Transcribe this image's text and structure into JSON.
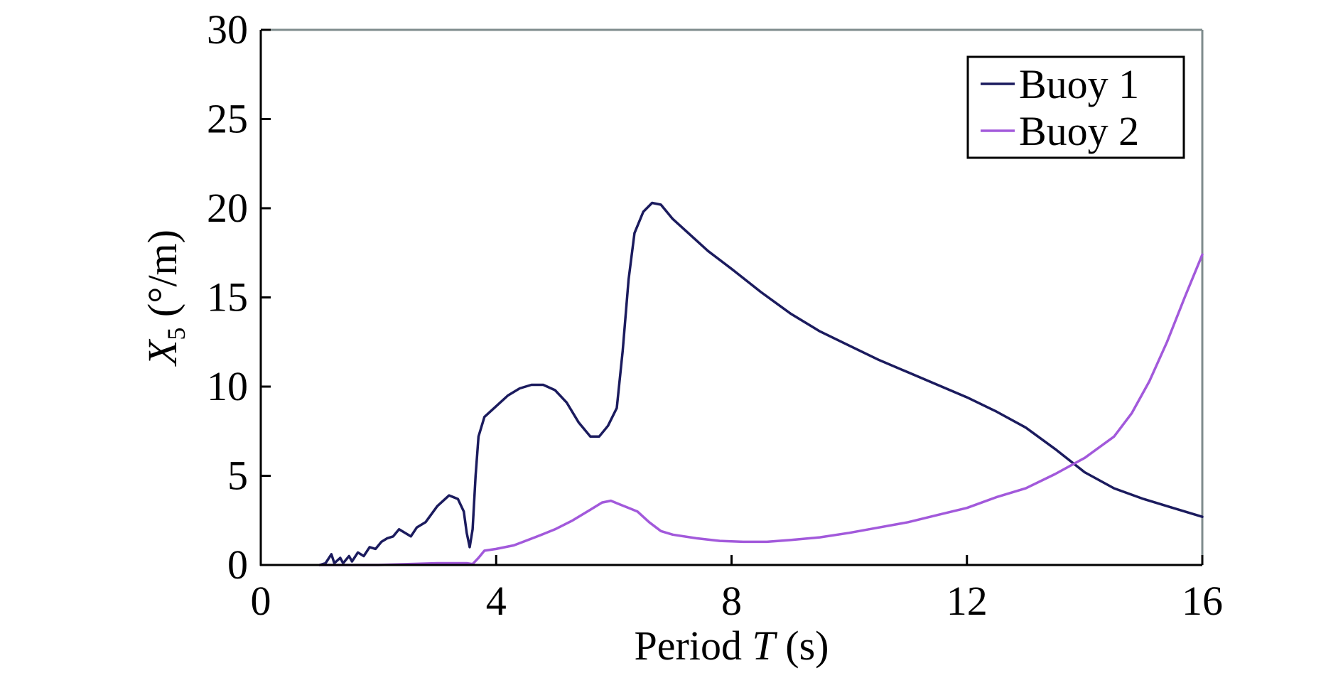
{
  "chart_data": {
    "type": "line",
    "title": "",
    "xlabel": {
      "prefix": "Period ",
      "symbol": "T",
      "suffix": " (s)"
    },
    "ylabel": {
      "symbol": "X",
      "subscript": "5",
      "suffix": " (°/m)"
    },
    "xlim": [
      0,
      16
    ],
    "ylim": [
      0,
      30
    ],
    "xticks": [
      "0",
      "4",
      "8",
      "12",
      "16"
    ],
    "yticks": [
      "0",
      "5",
      "10",
      "15",
      "20",
      "25",
      "30"
    ],
    "grid": false,
    "legend_position": "top-right",
    "series": [
      {
        "name": "Buoy 1",
        "color": "#1b1b5e",
        "points": [
          [
            1.0,
            0.0
          ],
          [
            1.1,
            0.1
          ],
          [
            1.2,
            0.6
          ],
          [
            1.25,
            0.1
          ],
          [
            1.35,
            0.4
          ],
          [
            1.4,
            0.1
          ],
          [
            1.5,
            0.5
          ],
          [
            1.55,
            0.2
          ],
          [
            1.65,
            0.7
          ],
          [
            1.75,
            0.5
          ],
          [
            1.85,
            1.0
          ],
          [
            1.95,
            0.9
          ],
          [
            2.05,
            1.3
          ],
          [
            2.15,
            1.5
          ],
          [
            2.25,
            1.6
          ],
          [
            2.35,
            2.0
          ],
          [
            2.45,
            1.8
          ],
          [
            2.55,
            1.6
          ],
          [
            2.65,
            2.1
          ],
          [
            2.8,
            2.4
          ],
          [
            3.0,
            3.3
          ],
          [
            3.2,
            3.9
          ],
          [
            3.35,
            3.7
          ],
          [
            3.45,
            3.0
          ],
          [
            3.5,
            1.8
          ],
          [
            3.55,
            1.0
          ],
          [
            3.6,
            2.0
          ],
          [
            3.65,
            5.0
          ],
          [
            3.7,
            7.2
          ],
          [
            3.8,
            8.3
          ],
          [
            4.0,
            8.9
          ],
          [
            4.2,
            9.5
          ],
          [
            4.4,
            9.9
          ],
          [
            4.6,
            10.1
          ],
          [
            4.8,
            10.1
          ],
          [
            5.0,
            9.8
          ],
          [
            5.2,
            9.1
          ],
          [
            5.4,
            8.0
          ],
          [
            5.6,
            7.2
          ],
          [
            5.75,
            7.2
          ],
          [
            5.9,
            7.8
          ],
          [
            6.05,
            8.8
          ],
          [
            6.15,
            12.0
          ],
          [
            6.25,
            16.0
          ],
          [
            6.35,
            18.6
          ],
          [
            6.5,
            19.8
          ],
          [
            6.65,
            20.3
          ],
          [
            6.8,
            20.2
          ],
          [
            7.0,
            19.4
          ],
          [
            7.3,
            18.5
          ],
          [
            7.6,
            17.6
          ],
          [
            8.0,
            16.6
          ],
          [
            8.5,
            15.3
          ],
          [
            9.0,
            14.1
          ],
          [
            9.5,
            13.1
          ],
          [
            10.0,
            12.3
          ],
          [
            10.5,
            11.5
          ],
          [
            11.0,
            10.8
          ],
          [
            11.5,
            10.1
          ],
          [
            12.0,
            9.4
          ],
          [
            12.5,
            8.6
          ],
          [
            13.0,
            7.7
          ],
          [
            13.5,
            6.5
          ],
          [
            14.0,
            5.2
          ],
          [
            14.5,
            4.3
          ],
          [
            15.0,
            3.7
          ],
          [
            15.5,
            3.2
          ],
          [
            16.0,
            2.7
          ]
        ]
      },
      {
        "name": "Buoy 2",
        "color": "#a259db",
        "points": [
          [
            1.0,
            0.0
          ],
          [
            2.0,
            0.0
          ],
          [
            2.5,
            0.05
          ],
          [
            3.0,
            0.1
          ],
          [
            3.5,
            0.1
          ],
          [
            3.6,
            0.05
          ],
          [
            3.7,
            0.4
          ],
          [
            3.8,
            0.8
          ],
          [
            4.0,
            0.9
          ],
          [
            4.3,
            1.1
          ],
          [
            4.7,
            1.6
          ],
          [
            5.0,
            2.0
          ],
          [
            5.3,
            2.5
          ],
          [
            5.6,
            3.1
          ],
          [
            5.8,
            3.5
          ],
          [
            5.95,
            3.6
          ],
          [
            6.1,
            3.4
          ],
          [
            6.4,
            3.0
          ],
          [
            6.6,
            2.4
          ],
          [
            6.8,
            1.9
          ],
          [
            7.0,
            1.7
          ],
          [
            7.4,
            1.5
          ],
          [
            7.8,
            1.35
          ],
          [
            8.2,
            1.3
          ],
          [
            8.6,
            1.3
          ],
          [
            9.0,
            1.4
          ],
          [
            9.5,
            1.55
          ],
          [
            10.0,
            1.8
          ],
          [
            10.5,
            2.1
          ],
          [
            11.0,
            2.4
          ],
          [
            11.5,
            2.8
          ],
          [
            12.0,
            3.2
          ],
          [
            12.5,
            3.8
          ],
          [
            13.0,
            4.3
          ],
          [
            13.5,
            5.1
          ],
          [
            14.0,
            6.0
          ],
          [
            14.5,
            7.2
          ],
          [
            14.8,
            8.5
          ],
          [
            15.1,
            10.3
          ],
          [
            15.4,
            12.5
          ],
          [
            15.7,
            15.0
          ],
          [
            16.0,
            17.4
          ]
        ]
      }
    ]
  }
}
